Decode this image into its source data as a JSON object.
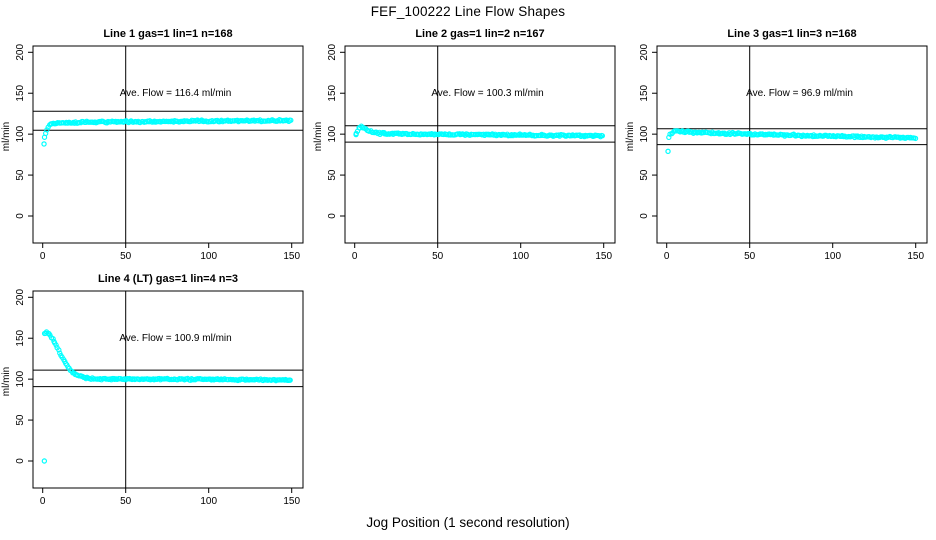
{
  "figure": {
    "title": "FEF_100222  Line Flow Shapes",
    "xlabel": "Jog Position (1 second resolution)",
    "point_color": "#00FFFF",
    "axis_color": "#000000"
  },
  "chart_data": [
    {
      "type": "scatter",
      "title": "Line 1 gas=1 lin=1 n=168",
      "n": 168,
      "ave_flow": 116.4,
      "annotation": "Ave. Flow =  116.4  ml/min",
      "ylabel": "ml/min",
      "xlim": [
        0,
        150
      ],
      "ylim": [
        0,
        200
      ],
      "xticks": [
        0,
        50,
        100,
        150
      ],
      "yticks": [
        0,
        50,
        100,
        150,
        200
      ],
      "vline_x": 50,
      "hlines": [
        128.0,
        104.8
      ],
      "curve": [
        [
          1.3,
          96
        ],
        [
          2.2,
          103
        ],
        [
          3.2,
          108
        ],
        [
          4.5,
          111
        ],
        [
          6,
          112.5
        ],
        [
          8,
          113.2
        ],
        [
          12,
          113.8
        ],
        [
          20,
          114.2
        ],
        [
          35,
          114.8
        ],
        [
          60,
          115.4
        ],
        [
          90,
          115.9
        ],
        [
          120,
          116.3
        ],
        [
          150,
          116.6
        ]
      ],
      "outliers": [
        [
          0.8,
          88
        ]
      ],
      "band": 1.4
    },
    {
      "type": "scatter",
      "title": "Line 2 gas=1 lin=2 n=167",
      "n": 167,
      "ave_flow": 100.3,
      "annotation": "Ave. Flow =  100.3  ml/min",
      "ylabel": "ml/min",
      "xlim": [
        0,
        150
      ],
      "ylim": [
        0,
        200
      ],
      "xticks": [
        0,
        50,
        100,
        150
      ],
      "yticks": [
        0,
        50,
        100,
        150,
        200
      ],
      "vline_x": 50,
      "hlines": [
        110.3,
        90.3
      ],
      "curve": [
        [
          1,
          101.5
        ],
        [
          2,
          105.5
        ],
        [
          3,
          108
        ],
        [
          4,
          109
        ],
        [
          5,
          108.3
        ],
        [
          6,
          107
        ],
        [
          7,
          105.5
        ],
        [
          8,
          104.3
        ],
        [
          10,
          102.8
        ],
        [
          12,
          101.8
        ],
        [
          15,
          101
        ],
        [
          20,
          100.6
        ],
        [
          30,
          100.2
        ],
        [
          45,
          100
        ],
        [
          60,
          99.7
        ],
        [
          80,
          99.3
        ],
        [
          100,
          98.9
        ],
        [
          120,
          98.4
        ],
        [
          150,
          97.7
        ]
      ],
      "outliers": [
        [
          0.8,
          99.5
        ]
      ],
      "band": 1.3
    },
    {
      "type": "scatter",
      "title": "Line 3 gas=1 lin=3 n=168",
      "n": 168,
      "ave_flow": 96.9,
      "annotation": "Ave. Flow =  96.9  ml/min",
      "ylabel": "ml/min",
      "xlim": [
        0,
        150
      ],
      "ylim": [
        0,
        200
      ],
      "xticks": [
        0,
        50,
        100,
        150
      ],
      "yticks": [
        0,
        50,
        100,
        150,
        200
      ],
      "vline_x": 50,
      "hlines": [
        106.6,
        87.2
      ],
      "curve": [
        [
          1.5,
          96.5
        ],
        [
          2.5,
          100.5
        ],
        [
          3.5,
          102.5
        ],
        [
          5,
          103.8
        ],
        [
          7,
          103.8
        ],
        [
          10,
          103.2
        ],
        [
          14,
          102.6
        ],
        [
          20,
          102
        ],
        [
          30,
          101.2
        ],
        [
          45,
          100.3
        ],
        [
          60,
          99.5
        ],
        [
          80,
          98.5
        ],
        [
          100,
          97.6
        ],
        [
          120,
          96.6
        ],
        [
          135,
          95.9
        ],
        [
          150,
          95.2
        ]
      ],
      "outliers": [
        [
          0.8,
          79
        ]
      ],
      "band": 1.4
    },
    {
      "type": "scatter",
      "title": "Line 4 (LT) gas=1 lin=4 n=3",
      "n": 3,
      "ave_flow": 100.9,
      "annotation": "Ave. Flow =  100.9  ml/min",
      "ylabel": "ml/min",
      "xlim": [
        0,
        150
      ],
      "ylim": [
        0,
        200
      ],
      "xticks": [
        0,
        50,
        100,
        150
      ],
      "yticks": [
        0,
        50,
        100,
        150,
        200
      ],
      "vline_x": 50,
      "hlines": [
        111.0,
        90.8
      ],
      "curve": [
        [
          1,
          156
        ],
        [
          2,
          157.5
        ],
        [
          3,
          157
        ],
        [
          4,
          155.5
        ],
        [
          5,
          152.5
        ],
        [
          6,
          149
        ],
        [
          7,
          145.5
        ],
        [
          8,
          141.5
        ],
        [
          9,
          137.5
        ],
        [
          10,
          133.5
        ],
        [
          11,
          129.5
        ],
        [
          12,
          126
        ],
        [
          13,
          122.5
        ],
        [
          14,
          119
        ],
        [
          15,
          116
        ],
        [
          16,
          113.5
        ],
        [
          17,
          111
        ],
        [
          18,
          109
        ],
        [
          19,
          107.3
        ],
        [
          20,
          105.8
        ],
        [
          22,
          103.8
        ],
        [
          25,
          102
        ],
        [
          28,
          101
        ],
        [
          32,
          100.4
        ],
        [
          40,
          100
        ],
        [
          55,
          100.2
        ],
        [
          75,
          100
        ],
        [
          100,
          99.7
        ],
        [
          125,
          99.3
        ],
        [
          150,
          99
        ]
      ],
      "outliers": [
        [
          1,
          0
        ]
      ],
      "band": 1.2
    }
  ]
}
